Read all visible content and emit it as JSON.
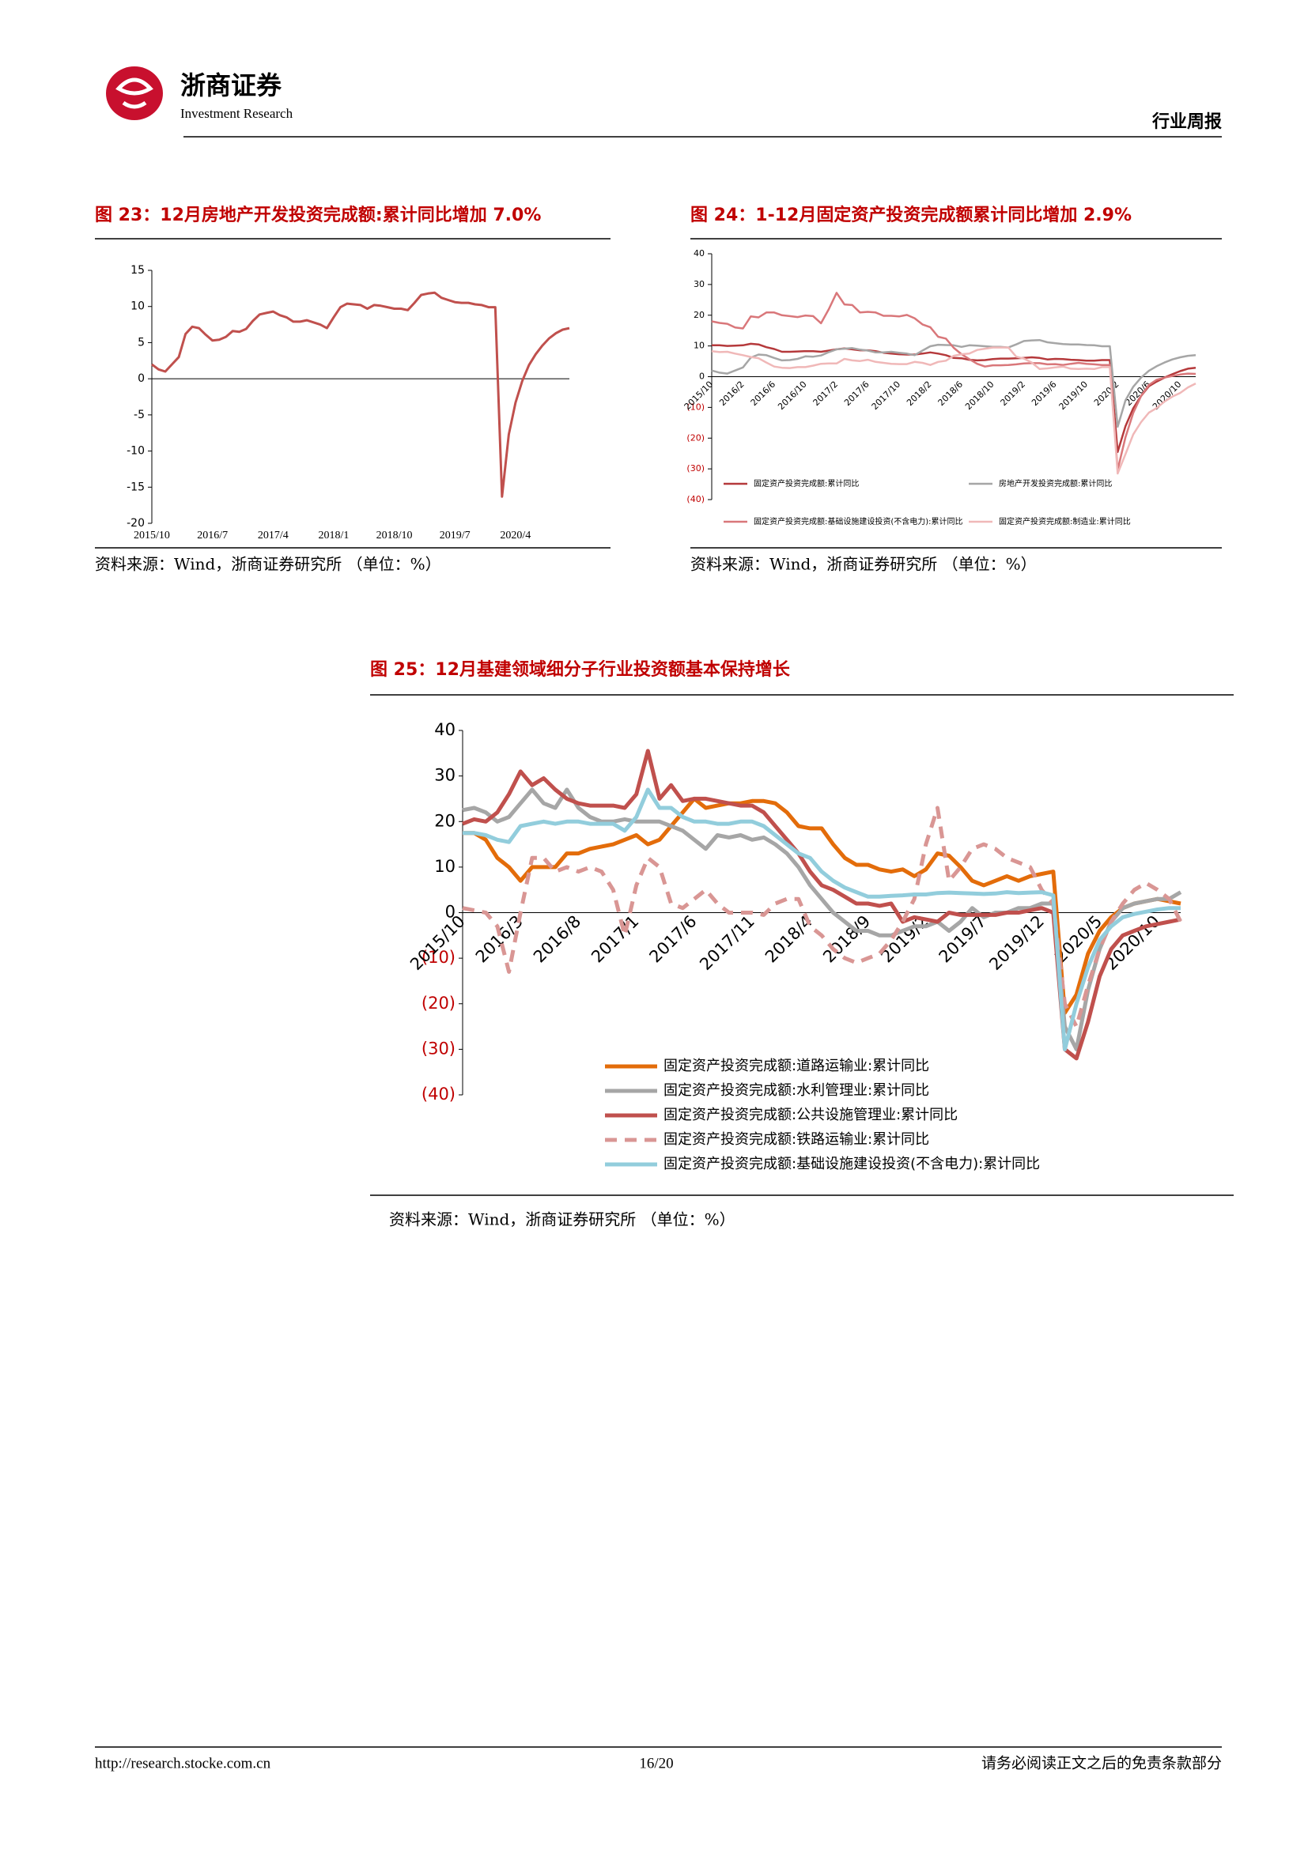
{
  "header": {
    "brand": "浙商证券",
    "brand_en": "Investment Research",
    "report_type": "行业周报"
  },
  "chart_data": [
    {
      "type": "line",
      "title": "图 23：12月房地产开发投资完成额:累计同比增加 7.0%",
      "source": "资料来源：Wind，浙商证券研究所 （单位：%）",
      "categories": [
        "2015/10",
        null,
        null,
        null,
        null,
        null,
        null,
        null,
        null,
        "2016/7",
        null,
        null,
        null,
        null,
        null,
        null,
        null,
        null,
        "2017/4",
        null,
        null,
        null,
        null,
        null,
        null,
        null,
        null,
        "2018/1",
        null,
        null,
        null,
        null,
        null,
        null,
        null,
        null,
        "2018/10",
        null,
        null,
        null,
        null,
        null,
        null,
        null,
        null,
        "2019/7",
        null,
        null,
        null,
        null,
        null,
        null,
        null,
        null,
        "2020/4",
        null,
        null,
        null,
        null,
        null,
        null,
        null,
        null
      ],
      "values": [
        2.0,
        1.3,
        1.0,
        2.0,
        3.0,
        6.2,
        7.2,
        7.0,
        6.1,
        5.3,
        5.4,
        5.8,
        6.6,
        6.5,
        6.9,
        8.0,
        8.9,
        9.1,
        9.3,
        8.8,
        8.5,
        7.9,
        7.9,
        8.1,
        7.8,
        7.5,
        7.0,
        8.5,
        9.9,
        10.4,
        10.3,
        10.2,
        9.7,
        10.2,
        10.1,
        9.9,
        9.7,
        9.7,
        9.5,
        10.5,
        11.6,
        11.8,
        11.9,
        11.2,
        10.9,
        10.6,
        10.5,
        10.5,
        10.3,
        10.2,
        9.9,
        9.9,
        -16.3,
        -7.7,
        -3.3,
        -0.3,
        1.9,
        3.4,
        4.6,
        5.6,
        6.3,
        6.8,
        7.0
      ],
      "color": "#c0504d",
      "ylim": [
        -20,
        15
      ],
      "yticks": [
        -20,
        -15,
        -10,
        -5,
        0,
        5,
        10,
        15
      ]
    },
    {
      "type": "line",
      "title": "图 24：1-12月固定资产投资完成额累计同比增加 2.9%",
      "source": "资料来源：Wind，浙商证券研究所 （单位：%）",
      "categories": [
        "2015/10",
        null,
        null,
        null,
        "2016/2",
        null,
        null,
        null,
        "2016/6",
        null,
        null,
        null,
        "2016/10",
        null,
        null,
        null,
        "2017/2",
        null,
        null,
        null,
        "2017/6",
        null,
        null,
        null,
        "2017/10",
        null,
        null,
        null,
        "2018/2",
        null,
        null,
        null,
        "2018/6",
        null,
        null,
        null,
        "2018/10",
        null,
        null,
        null,
        "2019/2",
        null,
        null,
        null,
        "2019/6",
        null,
        null,
        null,
        "2019/10",
        null,
        null,
        null,
        "2020/2",
        null,
        null,
        null,
        "2020/6",
        null,
        null,
        null,
        "2020/10",
        null,
        null
      ],
      "series": [
        {
          "name": "固定资产投资完成额:累计同比",
          "color": "#b5393b",
          "values": [
            10.2,
            10.2,
            10.0,
            10.1,
            10.2,
            10.7,
            10.5,
            9.6,
            9.0,
            8.1,
            8.1,
            8.2,
            8.3,
            8.3,
            8.1,
            8.5,
            8.9,
            9.2,
            8.9,
            8.6,
            8.6,
            8.3,
            7.8,
            7.5,
            7.3,
            7.2,
            7.2,
            7.5,
            7.9,
            7.5,
            7.0,
            6.1,
            6.0,
            5.5,
            5.3,
            5.4,
            5.7,
            5.9,
            5.9,
            6.0,
            6.1,
            6.3,
            6.1,
            5.6,
            5.8,
            5.7,
            5.5,
            5.4,
            5.2,
            5.2,
            5.4,
            5.4,
            -24.5,
            -16.1,
            -10.3,
            -6.3,
            -3.1,
            -1.6,
            -0.3,
            0.8,
            1.8,
            2.6,
            2.9
          ]
        },
        {
          "name": "房地产开发投资完成额:累计同比",
          "color": "#a6a6a6",
          "values": [
            2.0,
            1.3,
            1.0,
            2.0,
            3.0,
            6.2,
            7.2,
            7.0,
            6.1,
            5.3,
            5.4,
            5.8,
            6.6,
            6.5,
            6.9,
            8.0,
            8.9,
            9.1,
            9.3,
            8.8,
            8.5,
            7.9,
            7.9,
            8.1,
            7.8,
            7.5,
            7.0,
            8.5,
            9.9,
            10.4,
            10.3,
            10.2,
            9.7,
            10.2,
            10.1,
            9.9,
            9.7,
            9.7,
            9.5,
            10.5,
            11.6,
            11.8,
            11.9,
            11.2,
            10.9,
            10.6,
            10.5,
            10.5,
            10.3,
            10.2,
            9.9,
            9.9,
            -16.3,
            -7.7,
            -3.3,
            -0.3,
            1.9,
            3.4,
            4.6,
            5.6,
            6.3,
            6.8,
            7.0
          ]
        },
        {
          "name": "固定资产投资完成额:基础设施建设投资(不含电力):累计同比",
          "color": "#d9777a",
          "values": [
            18,
            17.5,
            17.2,
            16,
            15.7,
            19.6,
            19.3,
            20.9,
            20.9,
            20.0,
            19.7,
            19.4,
            19.9,
            19.7,
            17.4,
            22,
            27.3,
            23.5,
            23.3,
            20.9,
            21.1,
            20.9,
            19.8,
            19.8,
            19.6,
            20.1,
            19.0,
            17,
            16.1,
            13.0,
            12.4,
            9.4,
            7.3,
            5.7,
            4.2,
            3.3,
            3.7,
            3.7,
            3.8,
            4.0,
            4.3,
            4.4,
            4.4,
            4.0,
            4.1,
            3.8,
            4.2,
            4.5,
            4.2,
            4.0,
            3.8,
            3.8,
            -30.3,
            -19.7,
            -11.8,
            -6.3,
            -2.7,
            -1.0,
            -0.3,
            0.2,
            0.7,
            1.0,
            0.9
          ]
        },
        {
          "name": "固定资产投资完成额:制造业:累计同比",
          "color": "#f0b8b8",
          "values": [
            8.3,
            8.0,
            8.1,
            7.5,
            7.0,
            6.4,
            6.0,
            4.6,
            3.3,
            2.9,
            2.8,
            3.1,
            3.1,
            3.6,
            4.2,
            4.3,
            4.3,
            5.8,
            5.3,
            5.1,
            5.5,
            4.8,
            4.5,
            4.2,
            4.1,
            4.1,
            4.8,
            4.5,
            3.8,
            4.8,
            5.2,
            6.8,
            7.3,
            7.5,
            8.7,
            9.1,
            9.5,
            9.5,
            9.5,
            6.5,
            5.9,
            4.6,
            2.5,
            2.7,
            3.0,
            3.3,
            2.6,
            2.5,
            2.6,
            2.5,
            3.1,
            3.1,
            -31.5,
            -25.2,
            -18.8,
            -14.8,
            -11.7,
            -10.2,
            -8.1,
            -6.5,
            -5.3,
            -3.5,
            -2.2
          ]
        }
      ],
      "ylim": [
        -40,
        40
      ],
      "yticks": [
        {
          "value": -40,
          "label": "(40)"
        },
        {
          "value": -30,
          "label": "(30)"
        },
        {
          "value": -20,
          "label": "(20)"
        },
        {
          "value": -10,
          "label": "(10)"
        },
        0,
        10,
        20,
        30,
        40
      ],
      "legend": "bottom"
    },
    {
      "type": "line",
      "title": "图 25：12月基建领域细分子行业投资额基本保持增长",
      "source": "资料来源：Wind，浙商证券研究所 （单位：%）",
      "categories": [
        "2015/10",
        null,
        null,
        null,
        null,
        "2016/3",
        null,
        null,
        null,
        null,
        "2016/8",
        null,
        null,
        null,
        null,
        "2017/1",
        null,
        null,
        null,
        null,
        "2017/6",
        null,
        null,
        null,
        null,
        "2017/11",
        null,
        null,
        null,
        null,
        "2018/4",
        null,
        null,
        null,
        null,
        "2018/9",
        null,
        null,
        null,
        null,
        "2019/2",
        null,
        null,
        null,
        null,
        "2019/7",
        null,
        null,
        null,
        null,
        "2019/12",
        null,
        null,
        null,
        null,
        "2020/5",
        null,
        null,
        null,
        null,
        "2020/10",
        null,
        null
      ],
      "series": [
        {
          "name": "固定资产投资完成额:道路运输业:累计同比",
          "color": "#e36c0a",
          "values": [
            17.5,
            17.5,
            16,
            12,
            10,
            7,
            10,
            10,
            10,
            13,
            13,
            14,
            14.5,
            15,
            16,
            17,
            15,
            16,
            19,
            22,
            25,
            23,
            23.5,
            24,
            24,
            24.5,
            24.5,
            24,
            22,
            19,
            18.5,
            18.5,
            15,
            12,
            10.5,
            10.5,
            9.5,
            9,
            9.5,
            8,
            9.5,
            13,
            12.5,
            10,
            7,
            6,
            7,
            8,
            7,
            8,
            8.5,
            9,
            -22,
            -18,
            -9,
            -4,
            -1,
            1,
            2,
            2.5,
            3,
            2.5,
            2
          ]
        },
        {
          "name": "固定资产投资完成额:水利管理业:累计同比",
          "color": "#a6a6a6",
          "values": [
            22.5,
            23,
            22,
            20,
            21,
            24,
            27,
            24,
            23,
            27,
            23,
            21,
            20,
            20,
            20.5,
            20,
            20,
            20,
            19,
            18,
            16,
            14,
            17,
            16.5,
            17,
            16,
            16.5,
            15,
            13,
            10,
            6,
            3,
            0,
            -2,
            -4,
            -4,
            -5,
            -5,
            -4,
            -3,
            -3,
            -2,
            -4,
            -2,
            1,
            -1,
            0,
            0,
            1,
            1,
            2,
            2,
            -25,
            -30,
            -17,
            -8,
            -2,
            1,
            2,
            2.5,
            3,
            3,
            4.5
          ]
        },
        {
          "name": "固定资产投资完成额:公共设施管理业:累计同比",
          "color": "#c0504d",
          "values": [
            19.5,
            20.5,
            20,
            22,
            26,
            31,
            28,
            29.5,
            27,
            25,
            24,
            23.5,
            23.5,
            23.5,
            23,
            26,
            35.5,
            25,
            28,
            24.5,
            25,
            25,
            24.5,
            24,
            23.5,
            23.5,
            22,
            19,
            16,
            13,
            9,
            6,
            5,
            3.5,
            2,
            2,
            1.5,
            2,
            -2,
            -1,
            -1.5,
            -2,
            0,
            -0.5,
            -0.5,
            -0.5,
            -0.5,
            0,
            0,
            0.5,
            1,
            0,
            -30,
            -32,
            -24,
            -14,
            -8,
            -5,
            -4,
            -3,
            -2.5,
            -2,
            -1.5
          ]
        },
        {
          "name": "固定资产投资完成额:铁路运输业:累计同比",
          "color": "#d99694",
          "dashed": true,
          "values": [
            1,
            0.5,
            0,
            -3,
            -13,
            0,
            12,
            12,
            9,
            10,
            9,
            10,
            9,
            5,
            -5,
            6,
            12,
            10,
            2,
            1,
            3,
            5,
            2,
            0,
            0,
            0,
            -0.5,
            2,
            3,
            3,
            -3,
            -5,
            -8,
            -10,
            -11,
            -10,
            -9,
            -6,
            -2,
            3,
            15,
            23,
            7,
            10,
            14,
            15,
            14,
            12,
            11,
            10,
            5,
            2,
            -20,
            -25,
            -16,
            -8,
            -2,
            2,
            5,
            6.5,
            5,
            3,
            -2
          ]
        },
        {
          "name": "固定资产投资完成额:基础设施建设投资(不含电力):累计同比",
          "color": "#92cddc",
          "values": [
            17.5,
            17.5,
            17,
            16,
            15.5,
            19,
            19.5,
            20,
            19.5,
            20,
            20,
            19.5,
            19.5,
            19.5,
            18,
            21,
            27,
            23,
            23,
            21,
            20,
            20,
            19.5,
            19.5,
            20,
            20,
            19,
            17,
            15,
            13,
            12,
            9,
            7,
            5.5,
            4.5,
            3.5,
            3.5,
            3.7,
            3.8,
            4,
            4,
            4.3,
            4.4,
            4.3,
            4.2,
            4.1,
            4.2,
            4.5,
            4.3,
            4.4,
            4.5,
            3.8,
            -30,
            -20,
            -12,
            -6,
            -3,
            -1,
            -0.3,
            0.2,
            0.7,
            1,
            1
          ]
        }
      ],
      "ylim": [
        -40,
        40
      ],
      "yticks": [
        {
          "value": -40,
          "label": "(40)"
        },
        {
          "value": -30,
          "label": "(30)"
        },
        {
          "value": -20,
          "label": "(20)"
        },
        {
          "value": -10,
          "label": "(10)"
        },
        0,
        10,
        20,
        30,
        40
      ],
      "legend": "bottom"
    }
  ],
  "footer": {
    "url": "http://research.stocke.com.cn",
    "page": "16/20",
    "disclaimer": "请务必阅读正文之后的免责条款部分"
  }
}
